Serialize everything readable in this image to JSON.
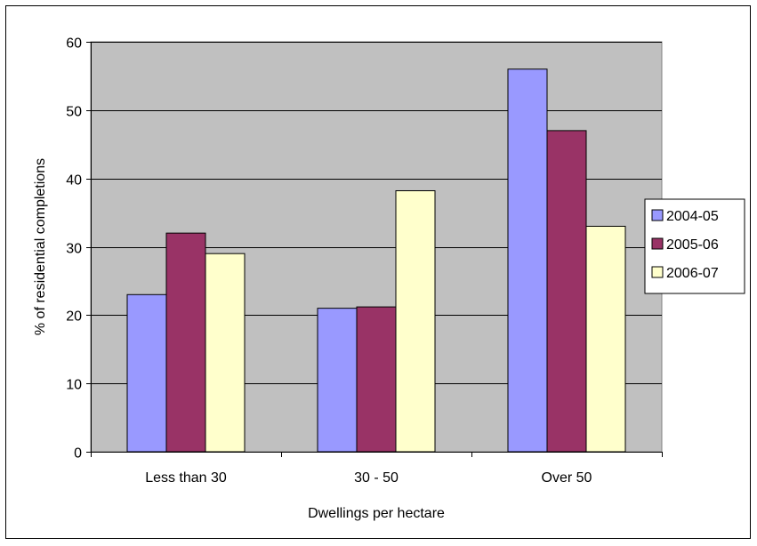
{
  "chart_data": {
    "type": "bar",
    "title": "",
    "xlabel": "Dwellings per hectare",
    "ylabel": "% of residential completions",
    "categories": [
      "Less than 30",
      "30 - 50",
      "Over 50"
    ],
    "series": [
      {
        "name": "2004-05",
        "values": [
          23,
          21,
          56
        ],
        "color": "#9999ff"
      },
      {
        "name": "2005-06",
        "values": [
          32,
          21.2,
          47
        ],
        "color": "#993366"
      },
      {
        "name": "2006-07",
        "values": [
          29,
          38.2,
          33
        ],
        "color": "#ffffcc"
      }
    ],
    "ylim": [
      0,
      60
    ],
    "yticks": [
      0,
      10,
      20,
      30,
      40,
      50,
      60
    ],
    "grid": true,
    "legend": "right",
    "plot_background": "#c0c0c0"
  }
}
